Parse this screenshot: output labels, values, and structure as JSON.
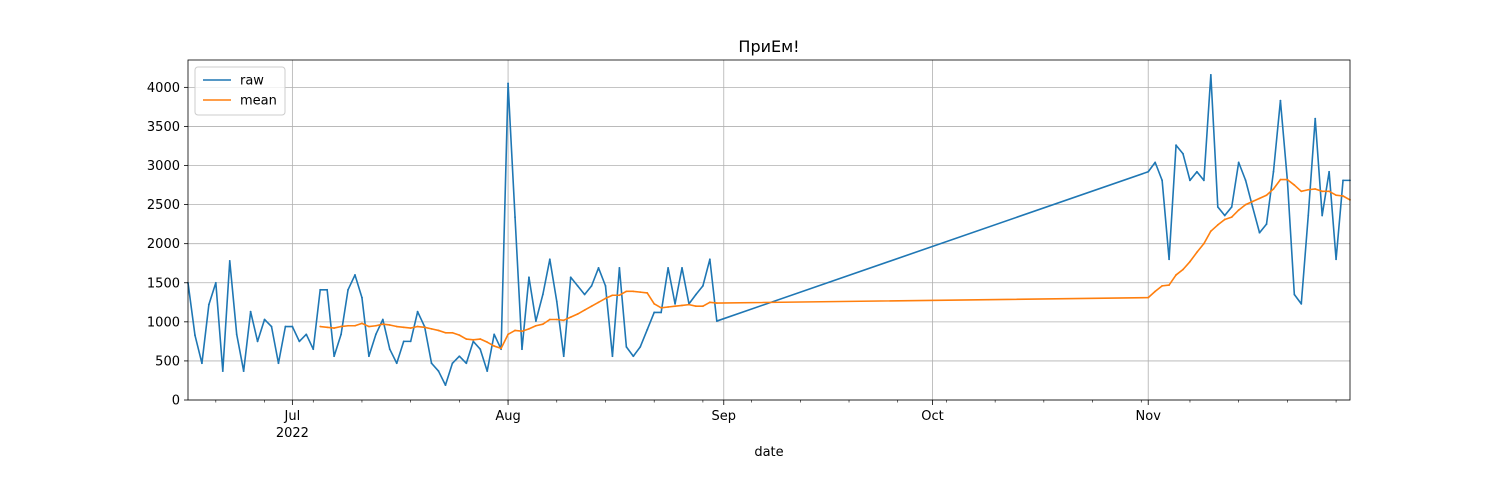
{
  "chart_data": {
    "type": "line",
    "title": "ПриЕм!",
    "xlabel": "date",
    "ylabel": "",
    "x_range": [
      "2022-06-16",
      "2022-11-30"
    ],
    "ylim": [
      0,
      4350
    ],
    "y_ticks": [
      0,
      500,
      1000,
      1500,
      2000,
      2500,
      3000,
      3500,
      4000
    ],
    "x_ticks": [
      {
        "date": "2022-07-01",
        "label": "Jul",
        "sublabel": "2022"
      },
      {
        "date": "2022-08-01",
        "label": "Aug",
        "sublabel": ""
      },
      {
        "date": "2022-09-01",
        "label": "Sep",
        "sublabel": ""
      },
      {
        "date": "2022-10-01",
        "label": "Oct",
        "sublabel": ""
      },
      {
        "date": "2022-11-01",
        "label": "Nov",
        "sublabel": ""
      }
    ],
    "grid": true,
    "legend_position": "top-left",
    "series": [
      {
        "name": "raw",
        "color": "#1f77b4",
        "points": [
          [
            "2022-06-16",
            1500
          ],
          [
            "2022-06-17",
            830
          ],
          [
            "2022-06-18",
            470
          ],
          [
            "2022-06-19",
            1220
          ],
          [
            "2022-06-20",
            1500
          ],
          [
            "2022-06-21",
            370
          ],
          [
            "2022-06-22",
            1780
          ],
          [
            "2022-06-23",
            840
          ],
          [
            "2022-06-24",
            370
          ],
          [
            "2022-06-25",
            1130
          ],
          [
            "2022-06-26",
            750
          ],
          [
            "2022-06-27",
            1030
          ],
          [
            "2022-06-28",
            940
          ],
          [
            "2022-06-29",
            470
          ],
          [
            "2022-06-30",
            940
          ],
          [
            "2022-07-01",
            940
          ],
          [
            "2022-07-02",
            750
          ],
          [
            "2022-07-03",
            840
          ],
          [
            "2022-07-04",
            650
          ],
          [
            "2022-07-05",
            1410
          ],
          [
            "2022-07-06",
            1410
          ],
          [
            "2022-07-07",
            560
          ],
          [
            "2022-07-08",
            840
          ],
          [
            "2022-07-09",
            1410
          ],
          [
            "2022-07-10",
            1600
          ],
          [
            "2022-07-11",
            1310
          ],
          [
            "2022-07-12",
            560
          ],
          [
            "2022-07-13",
            840
          ],
          [
            "2022-07-14",
            1030
          ],
          [
            "2022-07-15",
            650
          ],
          [
            "2022-07-16",
            470
          ],
          [
            "2022-07-17",
            750
          ],
          [
            "2022-07-18",
            750
          ],
          [
            "2022-07-19",
            1130
          ],
          [
            "2022-07-20",
            940
          ],
          [
            "2022-07-21",
            470
          ],
          [
            "2022-07-22",
            370
          ],
          [
            "2022-07-23",
            190
          ],
          [
            "2022-07-24",
            470
          ],
          [
            "2022-07-25",
            560
          ],
          [
            "2022-07-26",
            470
          ],
          [
            "2022-07-27",
            750
          ],
          [
            "2022-07-28",
            650
          ],
          [
            "2022-07-29",
            370
          ],
          [
            "2022-07-30",
            840
          ],
          [
            "2022-07-31",
            650
          ],
          [
            "2022-08-01",
            4050
          ],
          [
            "2022-08-02",
            2340
          ],
          [
            "2022-08-03",
            650
          ],
          [
            "2022-08-04",
            1570
          ],
          [
            "2022-08-05",
            1010
          ],
          [
            "2022-08-06",
            1350
          ],
          [
            "2022-08-07",
            1800
          ],
          [
            "2022-08-08",
            1260
          ],
          [
            "2022-08-09",
            560
          ],
          [
            "2022-08-10",
            1570
          ],
          [
            "2022-08-11",
            1460
          ],
          [
            "2022-08-12",
            1350
          ],
          [
            "2022-08-13",
            1460
          ],
          [
            "2022-08-14",
            1690
          ],
          [
            "2022-08-15",
            1460
          ],
          [
            "2022-08-16",
            560
          ],
          [
            "2022-08-17",
            1690
          ],
          [
            "2022-08-18",
            680
          ],
          [
            "2022-08-19",
            560
          ],
          [
            "2022-08-20",
            680
          ],
          [
            "2022-08-21",
            900
          ],
          [
            "2022-08-22",
            1120
          ],
          [
            "2022-08-23",
            1120
          ],
          [
            "2022-08-24",
            1690
          ],
          [
            "2022-08-25",
            1230
          ],
          [
            "2022-08-26",
            1690
          ],
          [
            "2022-08-27",
            1230
          ],
          [
            "2022-08-28",
            1350
          ],
          [
            "2022-08-29",
            1460
          ],
          [
            "2022-08-30",
            1800
          ],
          [
            "2022-08-31",
            1010
          ],
          [
            "2022-11-01",
            2920
          ],
          [
            "2022-11-02",
            3040
          ],
          [
            "2022-11-03",
            2810
          ],
          [
            "2022-11-04",
            1800
          ],
          [
            "2022-11-05",
            3260
          ],
          [
            "2022-11-06",
            3150
          ],
          [
            "2022-11-07",
            2810
          ],
          [
            "2022-11-08",
            2920
          ],
          [
            "2022-11-09",
            2810
          ],
          [
            "2022-11-10",
            4160
          ],
          [
            "2022-11-11",
            2470
          ],
          [
            "2022-11-12",
            2360
          ],
          [
            "2022-11-13",
            2470
          ],
          [
            "2022-11-14",
            3040
          ],
          [
            "2022-11-15",
            2810
          ],
          [
            "2022-11-16",
            2470
          ],
          [
            "2022-11-17",
            2140
          ],
          [
            "2022-11-18",
            2250
          ],
          [
            "2022-11-19",
            2920
          ],
          [
            "2022-11-20",
            3830
          ],
          [
            "2022-11-21",
            2810
          ],
          [
            "2022-11-22",
            1350
          ],
          [
            "2022-11-23",
            1230
          ],
          [
            "2022-11-24",
            2360
          ],
          [
            "2022-11-25",
            3600
          ],
          [
            "2022-11-26",
            2360
          ],
          [
            "2022-11-27",
            2920
          ],
          [
            "2022-11-28",
            1800
          ],
          [
            "2022-11-29",
            2810
          ],
          [
            "2022-11-30",
            2810
          ]
        ]
      },
      {
        "name": "mean",
        "color": "#ff7f0e",
        "points": [
          [
            "2022-07-05",
            940
          ],
          [
            "2022-07-06",
            930
          ],
          [
            "2022-07-07",
            920
          ],
          [
            "2022-07-08",
            940
          ],
          [
            "2022-07-09",
            950
          ],
          [
            "2022-07-10",
            950
          ],
          [
            "2022-07-11",
            980
          ],
          [
            "2022-07-12",
            940
          ],
          [
            "2022-07-13",
            950
          ],
          [
            "2022-07-14",
            970
          ],
          [
            "2022-07-15",
            960
          ],
          [
            "2022-07-16",
            940
          ],
          [
            "2022-07-17",
            930
          ],
          [
            "2022-07-18",
            920
          ],
          [
            "2022-07-19",
            940
          ],
          [
            "2022-07-20",
            930
          ],
          [
            "2022-07-21",
            910
          ],
          [
            "2022-07-22",
            890
          ],
          [
            "2022-07-23",
            860
          ],
          [
            "2022-07-24",
            860
          ],
          [
            "2022-07-25",
            830
          ],
          [
            "2022-07-26",
            780
          ],
          [
            "2022-07-27",
            770
          ],
          [
            "2022-07-28",
            780
          ],
          [
            "2022-07-29",
            740
          ],
          [
            "2022-07-30",
            690
          ],
          [
            "2022-07-31",
            660
          ],
          [
            "2022-08-01",
            840
          ],
          [
            "2022-08-02",
            890
          ],
          [
            "2022-08-03",
            880
          ],
          [
            "2022-08-04",
            910
          ],
          [
            "2022-08-05",
            950
          ],
          [
            "2022-08-06",
            970
          ],
          [
            "2022-08-07",
            1030
          ],
          [
            "2022-08-08",
            1030
          ],
          [
            "2022-08-09",
            1020
          ],
          [
            "2022-08-10",
            1060
          ],
          [
            "2022-08-11",
            1100
          ],
          [
            "2022-08-12",
            1150
          ],
          [
            "2022-08-13",
            1200
          ],
          [
            "2022-08-14",
            1250
          ],
          [
            "2022-08-15",
            1300
          ],
          [
            "2022-08-16",
            1340
          ],
          [
            "2022-08-17",
            1340
          ],
          [
            "2022-08-18",
            1390
          ],
          [
            "2022-08-19",
            1390
          ],
          [
            "2022-08-20",
            1380
          ],
          [
            "2022-08-21",
            1370
          ],
          [
            "2022-08-22",
            1230
          ],
          [
            "2022-08-23",
            1180
          ],
          [
            "2022-08-24",
            1190
          ],
          [
            "2022-08-25",
            1200
          ],
          [
            "2022-08-26",
            1210
          ],
          [
            "2022-08-27",
            1220
          ],
          [
            "2022-08-28",
            1200
          ],
          [
            "2022-08-29",
            1200
          ],
          [
            "2022-08-30",
            1250
          ],
          [
            "2022-08-31",
            1240
          ],
          [
            "2022-11-01",
            1310
          ],
          [
            "2022-11-02",
            1390
          ],
          [
            "2022-11-03",
            1460
          ],
          [
            "2022-11-04",
            1470
          ],
          [
            "2022-11-05",
            1600
          ],
          [
            "2022-11-06",
            1670
          ],
          [
            "2022-11-07",
            1770
          ],
          [
            "2022-11-08",
            1890
          ],
          [
            "2022-11-09",
            2000
          ],
          [
            "2022-11-10",
            2160
          ],
          [
            "2022-11-11",
            2240
          ],
          [
            "2022-11-12",
            2310
          ],
          [
            "2022-11-13",
            2340
          ],
          [
            "2022-11-14",
            2430
          ],
          [
            "2022-11-15",
            2500
          ],
          [
            "2022-11-16",
            2540
          ],
          [
            "2022-11-17",
            2580
          ],
          [
            "2022-11-18",
            2620
          ],
          [
            "2022-11-19",
            2700
          ],
          [
            "2022-11-20",
            2820
          ],
          [
            "2022-11-21",
            2820
          ],
          [
            "2022-11-22",
            2750
          ],
          [
            "2022-11-23",
            2670
          ],
          [
            "2022-11-24",
            2690
          ],
          [
            "2022-11-25",
            2700
          ],
          [
            "2022-11-26",
            2670
          ],
          [
            "2022-11-27",
            2670
          ],
          [
            "2022-11-28",
            2620
          ],
          [
            "2022-11-29",
            2610
          ],
          [
            "2022-11-30",
            2560
          ]
        ]
      }
    ]
  }
}
